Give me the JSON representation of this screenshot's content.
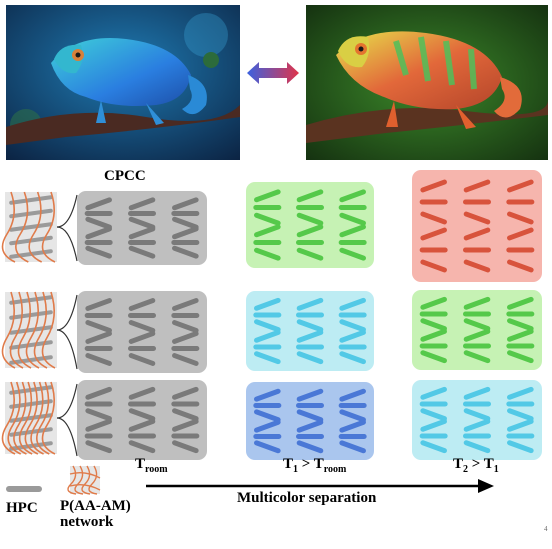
{
  "labels": {
    "cpcc": "CPCC",
    "t_room_main": "T",
    "t_room_sub": "room",
    "t1_main": "T",
    "t1_sub": "1",
    "t1_gt": " > T",
    "t1_sub2": "room",
    "t2_main": "T",
    "t2_sub": "2",
    "t2_gt": " > T",
    "t2_sub2": "1",
    "hpc": "HPC",
    "network_line1": "P(AA-AM)",
    "network_line2": "network",
    "separation": "Multicolor separation",
    "page_mark": "4"
  },
  "colors": {
    "gray_box": "#bfbfbf",
    "gray_helix": "#7a7a7a",
    "green_box": "#c6f2b4",
    "green_helix": "#55c94a",
    "cyan_box": "#bdecf3",
    "cyan_helix": "#52c9e6",
    "blue_box": "#aac6ee",
    "blue_helix": "#4a78d6",
    "red_box": "#f6b5ad",
    "red_helix": "#d8533c",
    "network_line": "#e07b4a"
  },
  "grid": {
    "rows": [
      [
        "gray",
        "green",
        "red"
      ],
      [
        "gray",
        "cyan",
        "green"
      ],
      [
        "gray",
        "blue",
        "cyan"
      ]
    ]
  },
  "icons": {
    "swap": "double-arrow-icon",
    "hpc": "rod-icon",
    "network": "network-icon"
  }
}
